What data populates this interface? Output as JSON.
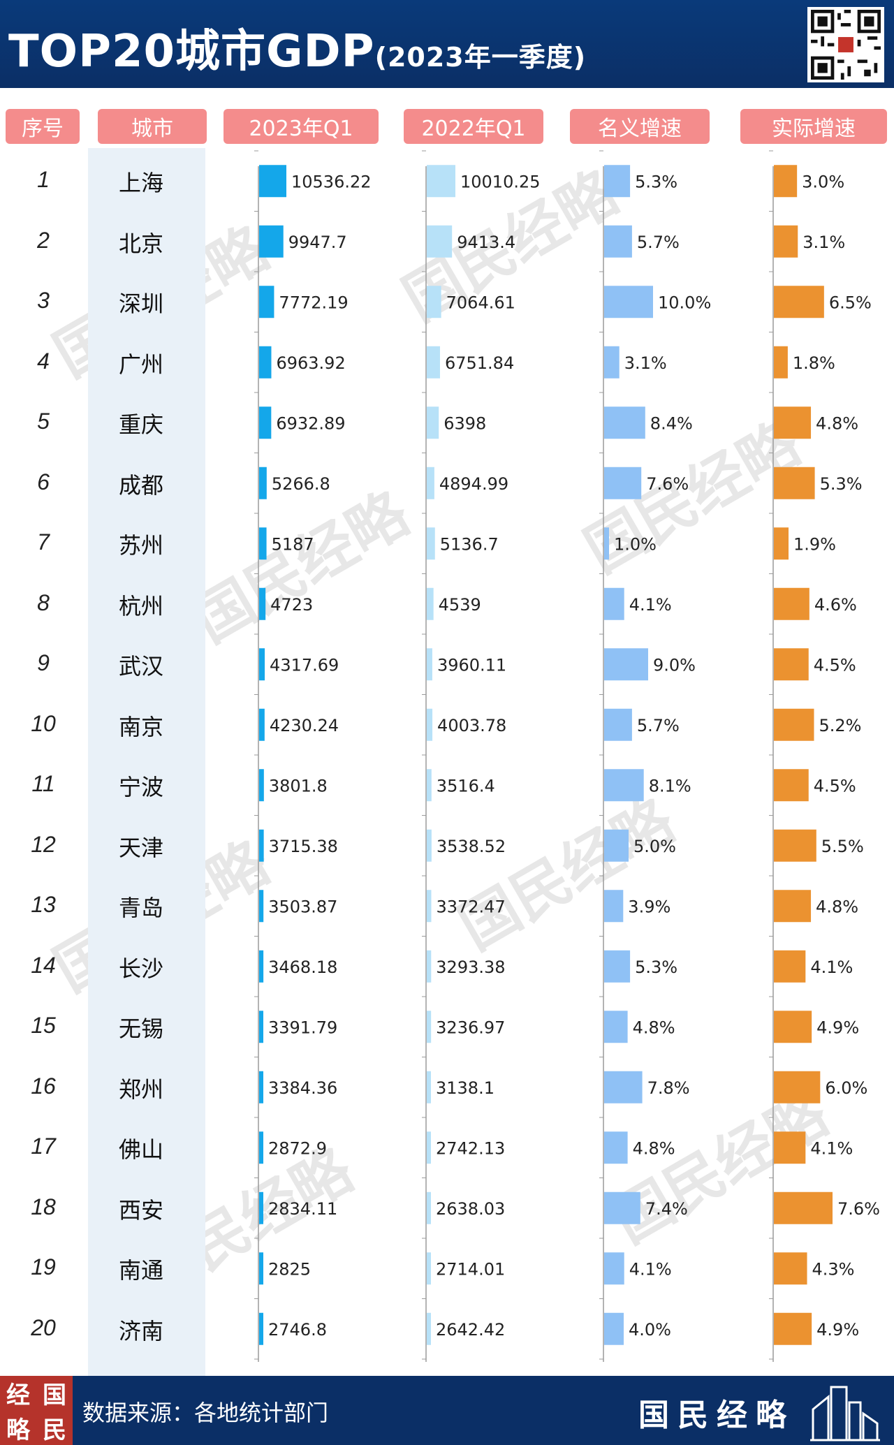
{
  "header": {
    "title": "TOP20城市GDP",
    "subtitle": "(2023年一季度)"
  },
  "columns": {
    "rank": "序号",
    "city": "城市",
    "gdp_2023": "2023年Q1",
    "gdp_2022": "2022年Q1",
    "nominal": "名义增速",
    "real": "实际增速"
  },
  "colors": {
    "header_bg": "#0b2f66",
    "column_header_bg": "#f48c8c",
    "bar_2023": "#14a7ea",
    "bar_2022": "#b7e1f8",
    "bar_nominal": "#8fc1f5",
    "bar_real": "#eb9230",
    "city_band": "#e9f1f8"
  },
  "watermark": "国民经略",
  "chart_data": {
    "type": "bar",
    "orientation": "horizontal",
    "categories": [
      "上海",
      "北京",
      "深圳",
      "广州",
      "重庆",
      "成都",
      "苏州",
      "杭州",
      "武汉",
      "南京",
      "宁波",
      "天津",
      "青岛",
      "长沙",
      "无锡",
      "郑州",
      "佛山",
      "西安",
      "南通",
      "济南"
    ],
    "ranks": [
      "1",
      "2",
      "3",
      "4",
      "5",
      "6",
      "7",
      "8",
      "9",
      "10",
      "11",
      "12",
      "13",
      "14",
      "15",
      "16",
      "17",
      "18",
      "19",
      "20"
    ],
    "series": [
      {
        "name": "2023年Q1",
        "values": [
          10536.22,
          9947.7,
          7772.19,
          6963.92,
          6932.89,
          5266.8,
          5187,
          4723,
          4317.69,
          4230.24,
          3801.8,
          3715.38,
          3503.87,
          3468.18,
          3391.79,
          3384.36,
          2872.9,
          2834.11,
          2825,
          2746.8
        ],
        "labels": [
          "10536.22",
          "9947.7",
          "7772.19",
          "6963.92",
          "6932.89",
          "5266.8",
          "5187",
          "4723",
          "4317.69",
          "4230.24",
          "3801.8",
          "3715.38",
          "3503.87",
          "3468.18",
          "3391.79",
          "3384.36",
          "2872.9",
          "2834.11",
          "2825",
          "2746.8"
        ]
      },
      {
        "name": "2022年Q1",
        "values": [
          10010.25,
          9413.4,
          7064.61,
          6751.84,
          6398,
          4894.99,
          5136.7,
          4539,
          3960.11,
          4003.78,
          3516.4,
          3538.52,
          3372.47,
          3293.38,
          3236.97,
          3138.1,
          2742.13,
          2638.03,
          2714.01,
          2642.42
        ],
        "labels": [
          "10010.25",
          "9413.4",
          "7064.61",
          "6751.84",
          "6398",
          "4894.99",
          "5136.7",
          "4539",
          "3960.11",
          "4003.78",
          "3516.4",
          "3538.52",
          "3372.47",
          "3293.38",
          "3236.97",
          "3138.1",
          "2742.13",
          "2638.03",
          "2714.01",
          "2642.42"
        ]
      },
      {
        "name": "名义增速",
        "values": [
          5.3,
          5.7,
          10.0,
          3.1,
          8.4,
          7.6,
          1.0,
          4.1,
          9.0,
          5.7,
          8.1,
          5.0,
          3.9,
          5.3,
          4.8,
          7.8,
          4.8,
          7.4,
          4.1,
          4.0
        ],
        "labels": [
          "5.3%",
          "5.7%",
          "10.0%",
          "3.1%",
          "8.4%",
          "7.6%",
          "1.0%",
          "4.1%",
          "9.0%",
          "5.7%",
          "8.1%",
          "5.0%",
          "3.9%",
          "5.3%",
          "4.8%",
          "7.8%",
          "4.8%",
          "7.4%",
          "4.1%",
          "4.0%"
        ]
      },
      {
        "name": "实际增速",
        "values": [
          3.0,
          3.1,
          6.5,
          1.8,
          4.8,
          5.3,
          1.9,
          4.6,
          4.5,
          5.2,
          4.5,
          5.5,
          4.8,
          4.1,
          4.9,
          6.0,
          4.1,
          7.6,
          4.3,
          4.9
        ],
        "labels": [
          "3.0%",
          "3.1%",
          "6.5%",
          "1.8%",
          "4.8%",
          "5.3%",
          "1.9%",
          "4.6%",
          "4.5%",
          "5.2%",
          "4.5%",
          "5.5%",
          "4.8%",
          "4.1%",
          "4.9%",
          "6.0%",
          "4.1%",
          "7.6%",
          "4.3%",
          "4.9%"
        ]
      }
    ]
  },
  "footer": {
    "logo_chars": [
      "经",
      "国",
      "略",
      "民"
    ],
    "source": "数据来源：各地统计部门",
    "brand": "国民经略"
  }
}
